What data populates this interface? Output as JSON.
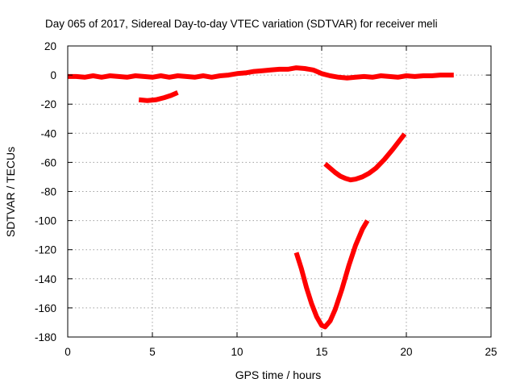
{
  "chart_data": {
    "type": "line",
    "title": "Day 065 of 2017, Sidereal Day-to-day VTEC variation (SDTVAR) for receiver meli",
    "xlabel": "GPS time / hours",
    "ylabel": "SDTVAR / TECUs",
    "xlim": [
      0,
      25
    ],
    "ylim": [
      -180,
      20
    ],
    "xticks": [
      "0",
      "5",
      "10",
      "15",
      "20",
      "25"
    ],
    "yticks": [
      "20",
      "0",
      "-20",
      "-40",
      "-60",
      "-80",
      "-100",
      "-120",
      "-140",
      "-160",
      "-180"
    ],
    "grid": true,
    "legend": "none",
    "series_color": "#ff0000",
    "series": [
      {
        "points": [
          [
            0,
            -1
          ],
          [
            0.5,
            -1
          ],
          [
            1,
            -1.5
          ],
          [
            1.5,
            -0.5
          ],
          [
            2,
            -1.5
          ],
          [
            2.5,
            -0.5
          ],
          [
            3,
            -1
          ],
          [
            3.5,
            -1.5
          ],
          [
            4,
            -0.5
          ],
          [
            4.5,
            -1
          ],
          [
            5,
            -1.5
          ],
          [
            5.5,
            -0.5
          ],
          [
            6,
            -1.5
          ],
          [
            6.5,
            -0.5
          ],
          [
            7,
            -1
          ],
          [
            7.5,
            -1.5
          ],
          [
            8,
            -0.5
          ],
          [
            8.5,
            -1.5
          ],
          [
            9,
            -0.5
          ],
          [
            9.5,
            0
          ],
          [
            10,
            1
          ],
          [
            10.5,
            1.5
          ],
          [
            11,
            2.5
          ],
          [
            11.5,
            3
          ],
          [
            12,
            3.5
          ],
          [
            12.5,
            4
          ],
          [
            13,
            4
          ],
          [
            13.5,
            5
          ],
          [
            14,
            4.5
          ],
          [
            14.5,
            3.5
          ],
          [
            15,
            1
          ],
          [
            15.5,
            -0.5
          ],
          [
            16,
            -1.5
          ],
          [
            16.5,
            -2
          ],
          [
            17,
            -1.5
          ],
          [
            17.5,
            -1
          ],
          [
            18,
            -1.5
          ],
          [
            18.5,
            -0.5
          ],
          [
            19,
            -1
          ],
          [
            19.5,
            -1.5
          ],
          [
            20,
            -0.5
          ],
          [
            20.5,
            -1
          ],
          [
            21,
            -0.5
          ],
          [
            21.5,
            -0.5
          ],
          [
            22,
            0
          ],
          [
            22.5,
            0
          ],
          [
            22.8,
            0
          ]
        ]
      },
      {
        "points": [
          [
            4.2,
            -17
          ],
          [
            4.7,
            -17.5
          ],
          [
            5.2,
            -17
          ],
          [
            5.7,
            -15.5
          ],
          [
            6.1,
            -14
          ],
          [
            6.5,
            -12
          ]
        ]
      },
      {
        "points": [
          [
            15.2,
            -61
          ],
          [
            15.5,
            -64
          ],
          [
            15.8,
            -67
          ],
          [
            16.1,
            -69.5
          ],
          [
            16.4,
            -71
          ],
          [
            16.7,
            -72
          ],
          [
            17.0,
            -71.5
          ],
          [
            17.4,
            -70
          ],
          [
            17.8,
            -67.5
          ],
          [
            18.2,
            -64
          ],
          [
            18.7,
            -58
          ],
          [
            19.2,
            -51
          ],
          [
            19.6,
            -45
          ],
          [
            19.9,
            -40.5
          ]
        ]
      },
      {
        "points": [
          [
            13.5,
            -122
          ],
          [
            13.8,
            -133
          ],
          [
            14.1,
            -146
          ],
          [
            14.4,
            -157
          ],
          [
            14.7,
            -166
          ],
          [
            15.0,
            -172
          ],
          [
            15.2,
            -173
          ],
          [
            15.5,
            -169
          ],
          [
            15.8,
            -161
          ],
          [
            16.2,
            -147
          ],
          [
            16.6,
            -131
          ],
          [
            17.0,
            -117
          ],
          [
            17.4,
            -106
          ],
          [
            17.7,
            -100
          ]
        ]
      }
    ]
  }
}
